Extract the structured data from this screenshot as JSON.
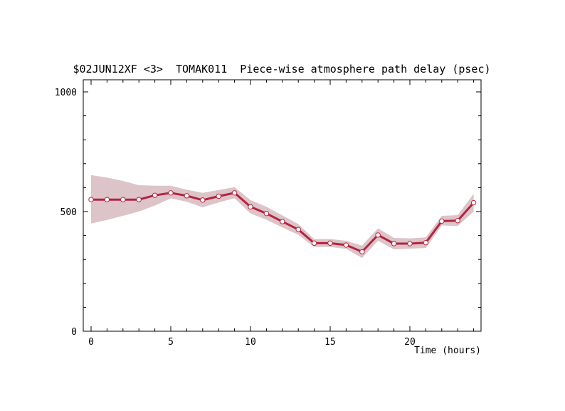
{
  "chart_data": {
    "type": "line",
    "title": "$02JUN12XF <3>  TOMAK011  Piece-wise atmosphere path delay (psec)",
    "xlabel": "Time (hours)",
    "ylabel": "",
    "xlim": [
      -0.5,
      24.5
    ],
    "ylim": [
      0,
      1000
    ],
    "x_ticks": [
      0,
      5,
      10,
      15,
      20
    ],
    "x_tick_labels": [
      "0",
      "5",
      "10",
      "15",
      "20"
    ],
    "y_ticks": [
      0,
      500,
      1000
    ],
    "y_tick_labels": [
      "0",
      "500",
      "1000"
    ],
    "grid": false,
    "colors": {
      "line": "#b5233f",
      "band": "#dcc4c8",
      "marker_fill": "#ffffff"
    },
    "series": [
      {
        "x": [
          0,
          1,
          2,
          3,
          4,
          5,
          6,
          7,
          8,
          9,
          10,
          11,
          12,
          13,
          14,
          15,
          16,
          17,
          18,
          19,
          20,
          21,
          22,
          23,
          24
        ],
        "values": [
          550,
          550,
          550,
          550,
          568,
          578,
          566,
          548,
          564,
          578,
          520,
          492,
          458,
          425,
          368,
          368,
          360,
          332,
          402,
          366,
          366,
          370,
          460,
          462,
          537
        ],
        "lower": [
          450,
          465,
          482,
          500,
          525,
          555,
          541,
          518,
          538,
          556,
          492,
          466,
          434,
          403,
          352,
          352,
          344,
          306,
          378,
          342,
          345,
          348,
          442,
          440,
          500
        ],
        "upper": [
          652,
          642,
          628,
          610,
          608,
          608,
          591,
          578,
          590,
          602,
          548,
          520,
          484,
          448,
          385,
          385,
          378,
          358,
          430,
          390,
          388,
          392,
          482,
          485,
          574
        ]
      }
    ]
  }
}
